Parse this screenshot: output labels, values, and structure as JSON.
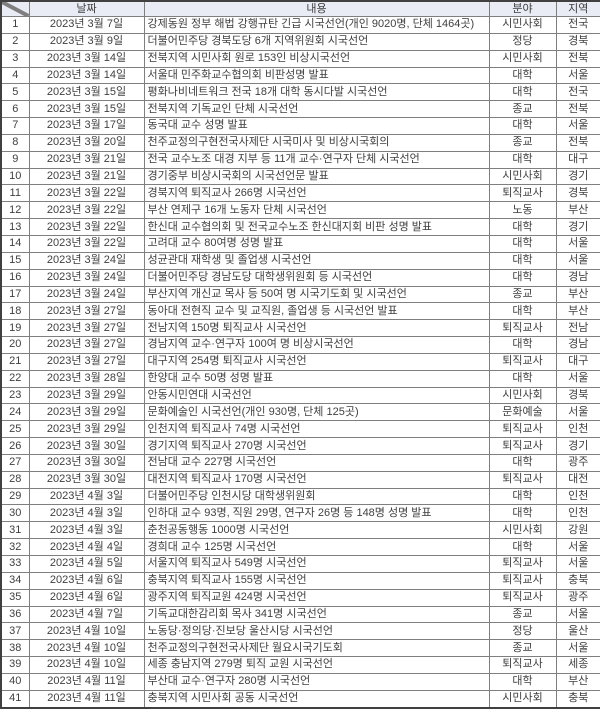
{
  "colors": {
    "header_background": "#e9ebf5",
    "grid_border": "#7f7f7f",
    "outer_border": "#404040",
    "text": "#3f3f3f"
  },
  "table": {
    "headers": {
      "index": "",
      "date": "날짜",
      "content": "내용",
      "field": "분야",
      "region": "지역"
    },
    "rows": [
      {
        "no": "1",
        "date": "2023년 3월 7일",
        "content": "강제동원 정부 해법 강행규탄 긴급 시국선언(개인 9020명, 단체 1464곳)",
        "field": "시민사회",
        "region": "전국"
      },
      {
        "no": "2",
        "date": "2023년 3월 9일",
        "content": "더불어민주당 경북도당 6개 지역위원회 시국선언",
        "field": "정당",
        "region": "경북"
      },
      {
        "no": "3",
        "date": "2023년 3월 14일",
        "content": "전북지역 시민사회 원로 153인 비상시국선언",
        "field": "시민사회",
        "region": "전북"
      },
      {
        "no": "4",
        "date": "2023년 3월 14일",
        "content": "서울대 민주화교수협의회 비판성명 발표",
        "field": "대학",
        "region": "서울"
      },
      {
        "no": "5",
        "date": "2023년 3월 15일",
        "content": "평화나비네트워크 전국 18개 대학 동시다발 시국선언",
        "field": "대학",
        "region": "전국"
      },
      {
        "no": "6",
        "date": "2023년 3월 15일",
        "content": "전북지역 기독교인 단체 시국선언",
        "field": "종교",
        "region": "전북"
      },
      {
        "no": "7",
        "date": "2023년 3월 17일",
        "content": "동국대 교수 성명 발표",
        "field": "대학",
        "region": "서울"
      },
      {
        "no": "8",
        "date": "2023년 3월 20일",
        "content": "천주교정의구현전국사제단 시국미사 및 비상시국회의",
        "field": "종교",
        "region": "전북"
      },
      {
        "no": "9",
        "date": "2023년 3월 21일",
        "content": "전국 교수노조 대경 지부 등 11개 교수·연구자 단체 시국선언",
        "field": "대학",
        "region": "대구"
      },
      {
        "no": "10",
        "date": "2023년 3월 21일",
        "content": "경기중부 비상시국회의 시국선언문 발표",
        "field": "시민사회",
        "region": "경기"
      },
      {
        "no": "11",
        "date": "2023년 3월 22일",
        "content": "경북지역 퇴직교사 266명 시국선언",
        "field": "퇴직교사",
        "region": "경북"
      },
      {
        "no": "12",
        "date": "2023년 3월 22일",
        "content": "부산 연제구 16개 노동자 단체 시국선언",
        "field": "노동",
        "region": "부산"
      },
      {
        "no": "13",
        "date": "2023년 3월 22일",
        "content": "한신대 교수협의회 및 전국교수노조 한신대지회 비판 성명 발표",
        "field": "대학",
        "region": "경기"
      },
      {
        "no": "14",
        "date": "2023년 3월 22일",
        "content": "고려대 교수 80여명 성명 발표",
        "field": "대학",
        "region": "서울"
      },
      {
        "no": "15",
        "date": "2023년 3월 24일",
        "content": "성균관대 재학생 및 졸업생 시국선언",
        "field": "대학",
        "region": "서울"
      },
      {
        "no": "16",
        "date": "2023년 3월 24일",
        "content": "더불어민주당 경남도당 대학생위원회 등 시국선언",
        "field": "대학",
        "region": "경남"
      },
      {
        "no": "17",
        "date": "2023년 3월 24일",
        "content": "부산지역 개신교 목사 등 50여 명 시국기도회 및 시국선언",
        "field": "종교",
        "region": "부산"
      },
      {
        "no": "18",
        "date": "2023년 3월 27일",
        "content": "동아대 전현직 교수 및 교직원, 졸업생 등 시국선언 발표",
        "field": "대학",
        "region": "부산"
      },
      {
        "no": "19",
        "date": "2023년 3월 27일",
        "content": "전남지역 150명 퇴직교사 시국선언",
        "field": "퇴직교사",
        "region": "전남"
      },
      {
        "no": "20",
        "date": "2023년 3월 27일",
        "content": "경남지역 교수·연구자 100여 명 비상시국선언",
        "field": "대학",
        "region": "경남"
      },
      {
        "no": "21",
        "date": "2023년 3월 27일",
        "content": "대구지역 254명 퇴직교사 시국선언",
        "field": "퇴직교사",
        "region": "대구"
      },
      {
        "no": "22",
        "date": "2023년 3월 28일",
        "content": "한양대 교수 50명 성명 발표",
        "field": "대학",
        "region": "서울"
      },
      {
        "no": "23",
        "date": "2023년 3월 29일",
        "content": "안동시민연대 시국선언",
        "field": "시민사회",
        "region": "경북"
      },
      {
        "no": "24",
        "date": "2023년 3월 29일",
        "content": "문화예술인 시국선언(개인 930명, 단체 125곳)",
        "field": "문화예술",
        "region": "서울"
      },
      {
        "no": "25",
        "date": "2023년 3월 29일",
        "content": "인천지역 퇴직교사 74명 시국선언",
        "field": "퇴직교사",
        "region": "인천"
      },
      {
        "no": "26",
        "date": "2023년 3월 30일",
        "content": "경기지역 퇴직교사 270명 시국선언",
        "field": "퇴직교사",
        "region": "경기"
      },
      {
        "no": "27",
        "date": "2023년 3월 30일",
        "content": "전남대 교수 227명 시국선언",
        "field": "대학",
        "region": "광주"
      },
      {
        "no": "28",
        "date": "2023년 3월 30일",
        "content": "대전지역 퇴직교사 170명 시국선언",
        "field": "퇴직교사",
        "region": "대전"
      },
      {
        "no": "29",
        "date": "2023년 4월 3일",
        "content": "더불어민주당 인천시당 대학생위원회",
        "field": "대학",
        "region": "인천"
      },
      {
        "no": "30",
        "date": "2023년 4월 3일",
        "content": "인하대 교수 93명, 직원 29명, 연구자 26명 등 148명 성명 발표",
        "field": "대학",
        "region": "인천"
      },
      {
        "no": "31",
        "date": "2023년 4월 3일",
        "content": "춘천공동행동 1000명 시국선언",
        "field": "시민사회",
        "region": "강원"
      },
      {
        "no": "32",
        "date": "2023년 4월 4일",
        "content": "경희대 교수 125명 시국선언",
        "field": "대학",
        "region": "서울"
      },
      {
        "no": "33",
        "date": "2023년 4월 5일",
        "content": "서울지역 퇴직교사 549명 시국선언",
        "field": "퇴직교사",
        "region": "서울"
      },
      {
        "no": "34",
        "date": "2023년 4월 6일",
        "content": "충북지역 퇴직교사 155명 시국선언",
        "field": "퇴직교사",
        "region": "충북"
      },
      {
        "no": "35",
        "date": "2023년 4월 6일",
        "content": "광주지역 퇴직교원 424명 시국선언",
        "field": "퇴직교사",
        "region": "광주"
      },
      {
        "no": "36",
        "date": "2023년 4월 7일",
        "content": "기독교대한감리회 목사 341명 시국선언",
        "field": "종교",
        "region": "서울"
      },
      {
        "no": "37",
        "date": "2023년 4월 10일",
        "content": "노동당·정의당·진보당 울산시당 시국선언",
        "field": "정당",
        "region": "울산"
      },
      {
        "no": "38",
        "date": "2023년 4월 10일",
        "content": "천주교정의구현전국사제단 월요시국기도회",
        "field": "종교",
        "region": "서울"
      },
      {
        "no": "39",
        "date": "2023년 4월 10일",
        "content": "세종 충남지역 279명 퇴직 교원 시국선언",
        "field": "퇴직교사",
        "region": "세종"
      },
      {
        "no": "40",
        "date": "2023년 4월 11일",
        "content": "부산대 교수·연구자 280명 시국선언",
        "field": "대학",
        "region": "부산"
      },
      {
        "no": "41",
        "date": "2023년 4월 11일",
        "content": "충북지역 시민사회 공동 시국선언",
        "field": "시민사회",
        "region": "충북"
      }
    ]
  }
}
